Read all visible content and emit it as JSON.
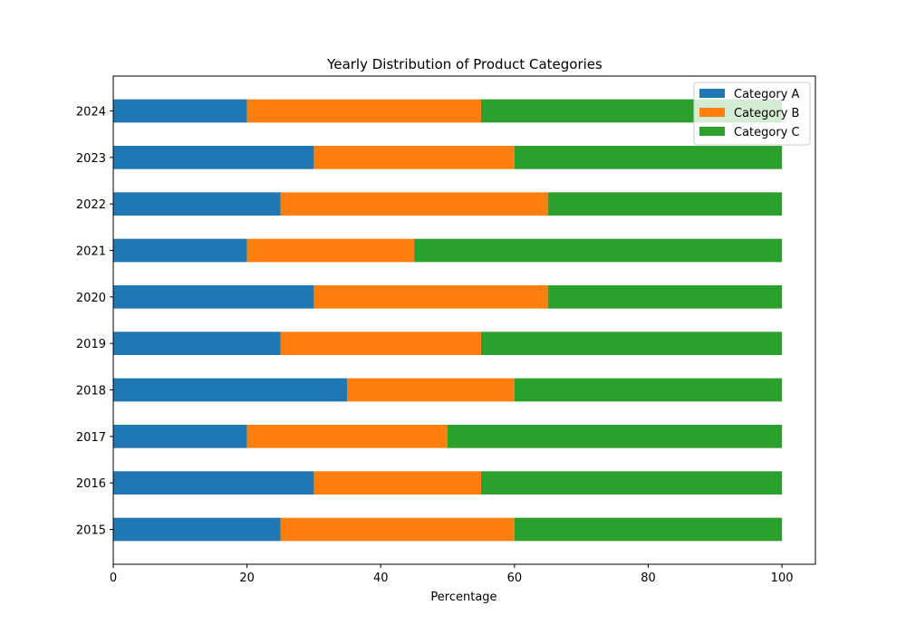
{
  "chart_data": {
    "type": "bar",
    "orientation": "horizontal",
    "stacked": true,
    "title": "Yearly Distribution of Product Categories",
    "xlabel": "Percentage",
    "ylabel": "",
    "xlim": [
      0,
      105
    ],
    "xticks": [
      0,
      20,
      40,
      60,
      80,
      100
    ],
    "categories": [
      "2015",
      "2016",
      "2017",
      "2018",
      "2019",
      "2020",
      "2021",
      "2022",
      "2023",
      "2024"
    ],
    "series": [
      {
        "name": "Category A",
        "color": "#1f77b4",
        "values": [
          25,
          30,
          20,
          35,
          25,
          30,
          20,
          25,
          30,
          20
        ]
      },
      {
        "name": "Category B",
        "color": "#ff7f0e",
        "values": [
          35,
          25,
          30,
          25,
          30,
          35,
          25,
          40,
          30,
          35
        ]
      },
      {
        "name": "Category C",
        "color": "#2ca02c",
        "values": [
          40,
          45,
          50,
          40,
          45,
          35,
          55,
          35,
          40,
          45
        ]
      }
    ],
    "grid": false,
    "legend_position": "top-right"
  }
}
